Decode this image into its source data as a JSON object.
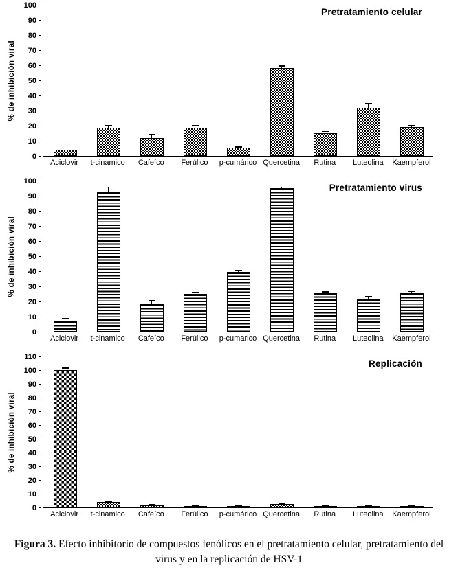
{
  "caption": {
    "label": "Figura 3.",
    "text": "Efecto inhibitorio de compuestos fenólicos en el pretratamiento celular, pretratamiento del virus y en la replicación de HSV-1"
  },
  "colors": {
    "background": "#ffffff",
    "axis": "#000000",
    "bar_fill": "#000000"
  },
  "chart_data": [
    {
      "type": "bar",
      "title": "Pretratamiento celular",
      "ylabel": "% de inhibición viral",
      "xlabel": "",
      "ylim": [
        0,
        100
      ],
      "ytick_step": 10,
      "grid": false,
      "legend": false,
      "pattern": "fine-checkerboard",
      "categories": [
        "Aciclovir",
        "t-cinamico",
        "Cafeíco",
        "Ferúlico",
        "p-cumárico",
        "Quercetina",
        "Rutina",
        "Luteolina",
        "Kaempferol"
      ],
      "values": [
        4,
        18.5,
        12,
        18.5,
        5.5,
        58,
        15,
        32,
        19
      ],
      "errors": [
        1.5,
        2,
        2.5,
        2,
        0.7,
        2,
        1.5,
        3,
        1.5
      ]
    },
    {
      "type": "bar",
      "title": "Pretratamiento virus",
      "ylabel": "% de inhibición viral",
      "xlabel": "",
      "ylim": [
        0,
        100
      ],
      "ytick_step": 10,
      "grid": false,
      "legend": false,
      "pattern": "horizontal-stripes",
      "categories": [
        "Aciclovir",
        "t-cinamico",
        "Cafeíco",
        "Ferúlico",
        "p-cumarico",
        "Quercetina",
        "Rutina",
        "Luteolina",
        "Kaempferol"
      ],
      "values": [
        7,
        92.5,
        18,
        25,
        39.5,
        95,
        26,
        22,
        25.5
      ],
      "errors": [
        2,
        3.5,
        3,
        1.5,
        1.5,
        1,
        0.7,
        1.5,
        1.5
      ]
    },
    {
      "type": "bar",
      "title": "Replicación",
      "ylabel": "% de inhibición viral",
      "xlabel": "",
      "ylim": [
        0,
        110
      ],
      "ytick_step": 10,
      "grid": false,
      "legend": false,
      "pattern": "fine-checkerboard",
      "pattern_overrides": {
        "0": "coarse-checkerboard"
      },
      "categories": [
        "Aciclovir",
        "t-cinamico",
        "Cafeíco",
        "Ferúlico",
        "p-cumárico",
        "Quercetina",
        "Rutina",
        "Luteolina",
        "Kaempferol"
      ],
      "values": [
        100,
        4,
        1.5,
        1,
        1,
        2.5,
        0.8,
        0.8,
        1.2
      ],
      "errors": [
        2,
        0.7,
        1.2,
        0.5,
        0.4,
        0.8,
        0.3,
        0.4,
        0.5
      ]
    }
  ]
}
